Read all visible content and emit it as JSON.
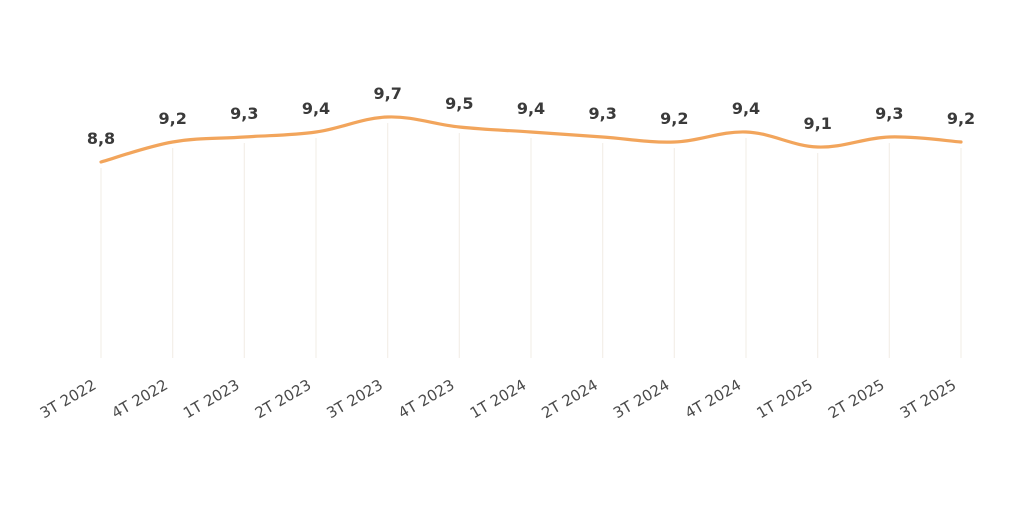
{
  "chart_data": {
    "type": "line",
    "title": "",
    "xlabel": "",
    "ylabel": "",
    "categories": [
      "3T 2022",
      "4T 2022",
      "1T 2023",
      "2T 2023",
      "3T 2023",
      "4T 2023",
      "1T 2024",
      "2T 2024",
      "3T 2024",
      "4T 2024",
      "1T 2025",
      "2T 2025",
      "3T 2025"
    ],
    "series": [
      {
        "values": [
          8.8,
          9.2,
          9.3,
          9.4,
          9.7,
          9.5,
          9.4,
          9.3,
          9.2,
          9.4,
          9.1,
          9.3,
          9.2
        ],
        "data_labels": [
          "8,8",
          "9,2",
          "9,3",
          "9,4",
          "9,7",
          "9,5",
          "9,4",
          "9,3",
          "9,2",
          "9,4",
          "9,1",
          "9,3",
          "9,2"
        ]
      }
    ],
    "ylim": [
      0,
      10
    ],
    "grid": "vertical",
    "legend": "none",
    "line_style": "smooth",
    "colors": {
      "series": "#f2a55c",
      "gridline": "#f4efe9",
      "label": "#3a3a3a",
      "tick": "#4a4a4a"
    }
  }
}
